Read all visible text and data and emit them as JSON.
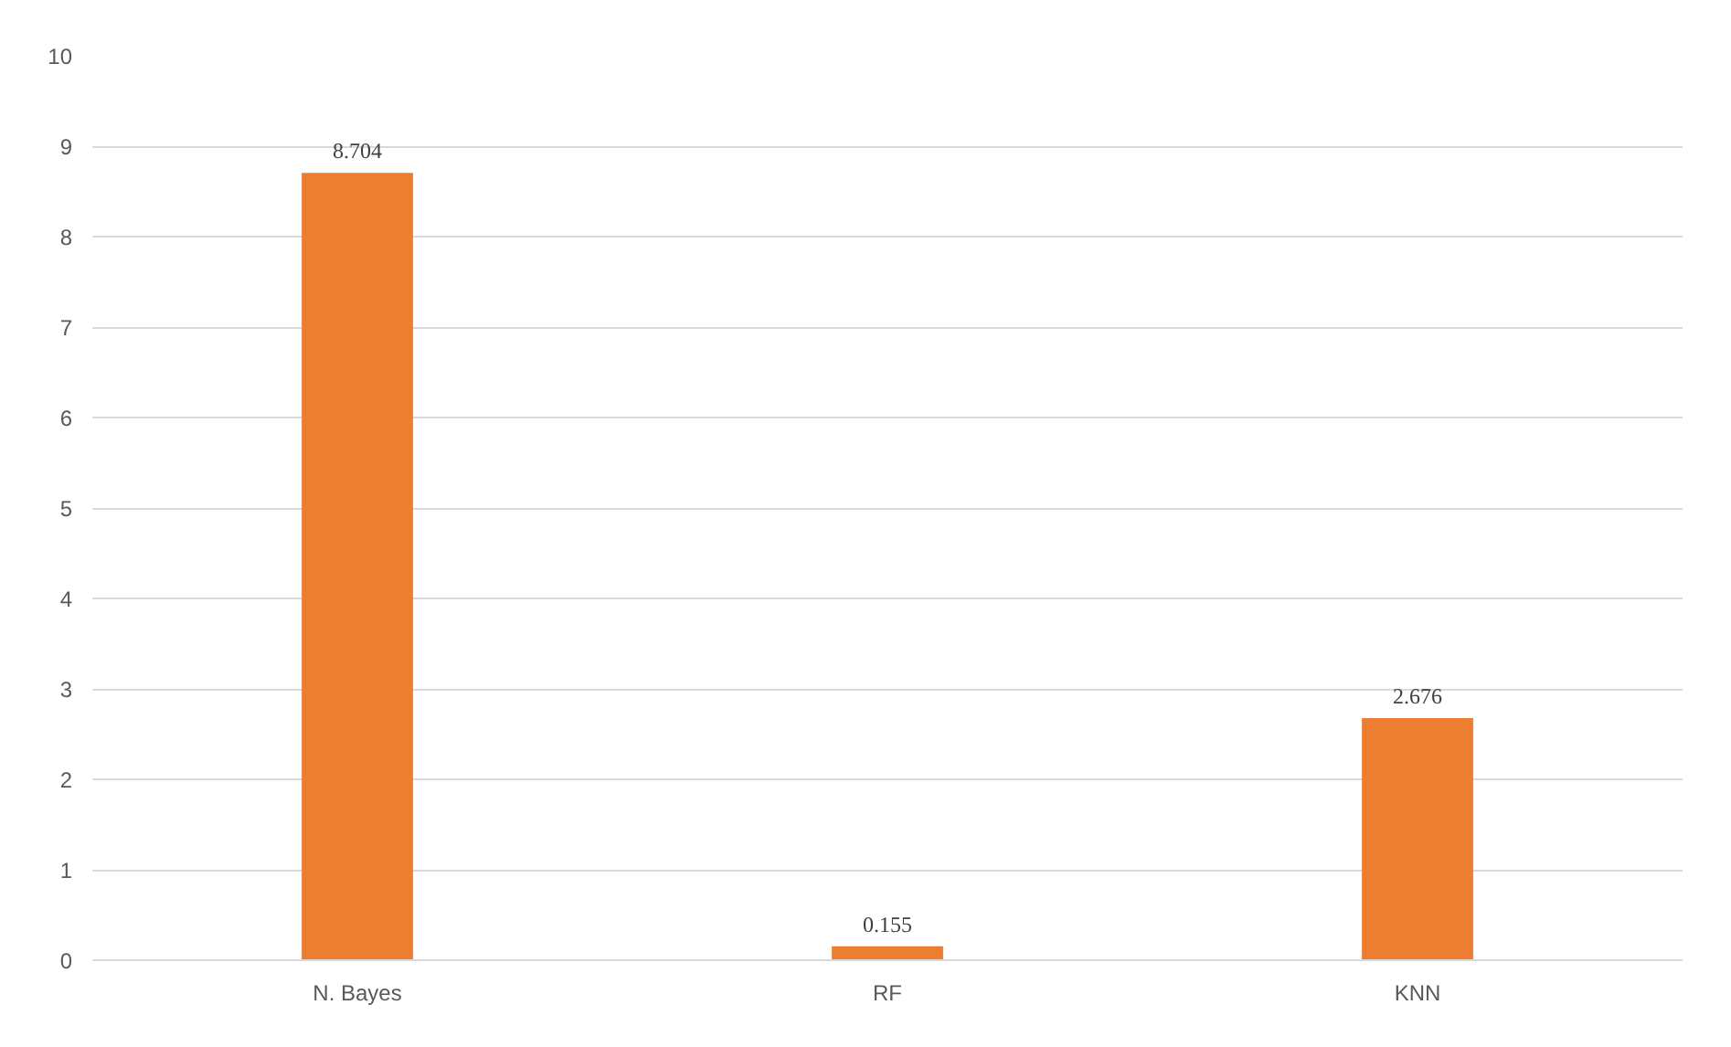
{
  "chart_data": {
    "type": "bar",
    "categories": [
      "N. Bayes",
      "RF",
      "KNN"
    ],
    "values": [
      8.704,
      0.155,
      2.676
    ],
    "color": "#ed7d31",
    "ylim": [
      0,
      10
    ],
    "yticks": [
      0,
      1,
      2,
      3,
      4,
      5,
      6,
      7,
      8,
      9,
      10
    ],
    "grid": "y",
    "data_labels": true
  }
}
